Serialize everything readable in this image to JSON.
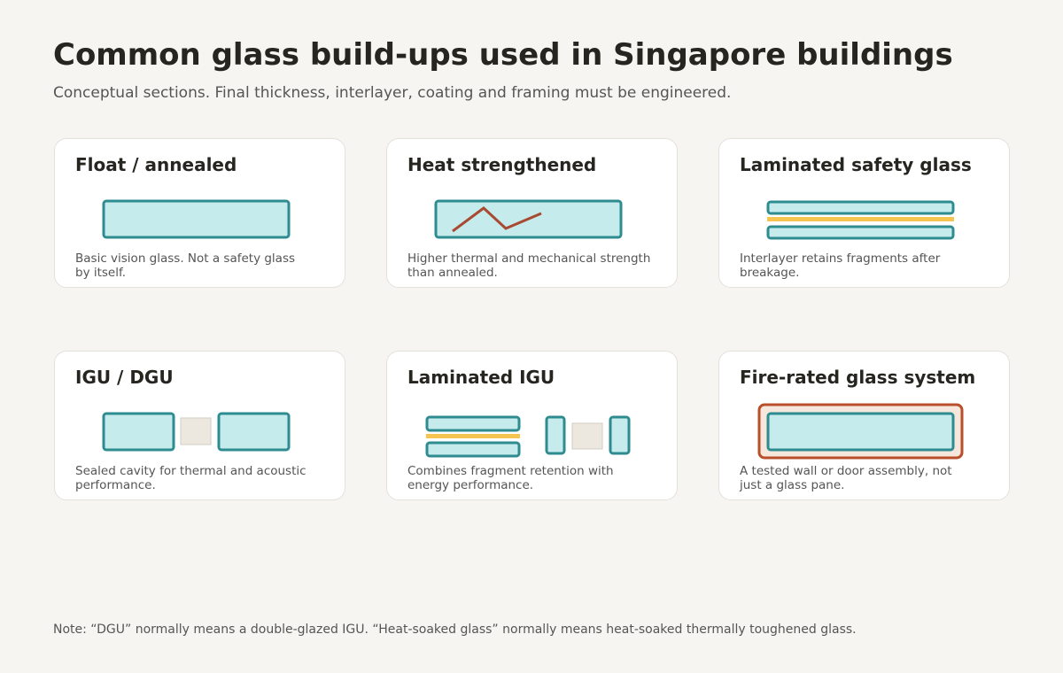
{
  "header": {
    "title": "Common glass build-ups used in Singapore buildings",
    "subtitle": "Conceptual sections. Final thickness, interlayer, coating and framing must be engineered."
  },
  "cards": [
    {
      "title": "Float / annealed",
      "description": [
        "Basic vision glass. Not a safety glass",
        "by itself."
      ]
    },
    {
      "title": "Heat strengthened",
      "description": [
        "Higher thermal and mechanical strength",
        "than annealed."
      ]
    },
    {
      "title": "Laminated safety glass",
      "description": [
        "Interlayer retains fragments after",
        "breakage."
      ]
    },
    {
      "title": "IGU / DGU",
      "description": [
        "Sealed cavity for thermal and acoustic",
        "performance."
      ]
    },
    {
      "title": "Laminated IGU",
      "description": [
        "Combines fragment retention with",
        "energy performance."
      ]
    },
    {
      "title": "Fire-rated glass system",
      "description": [
        "A tested wall or door assembly, not",
        "just a glass pane."
      ]
    }
  ],
  "note": "Note: “DGU” normally means a double-glazed IGU. “Heat-soaked glass” normally means heat-soaked thermally toughened glass."
}
